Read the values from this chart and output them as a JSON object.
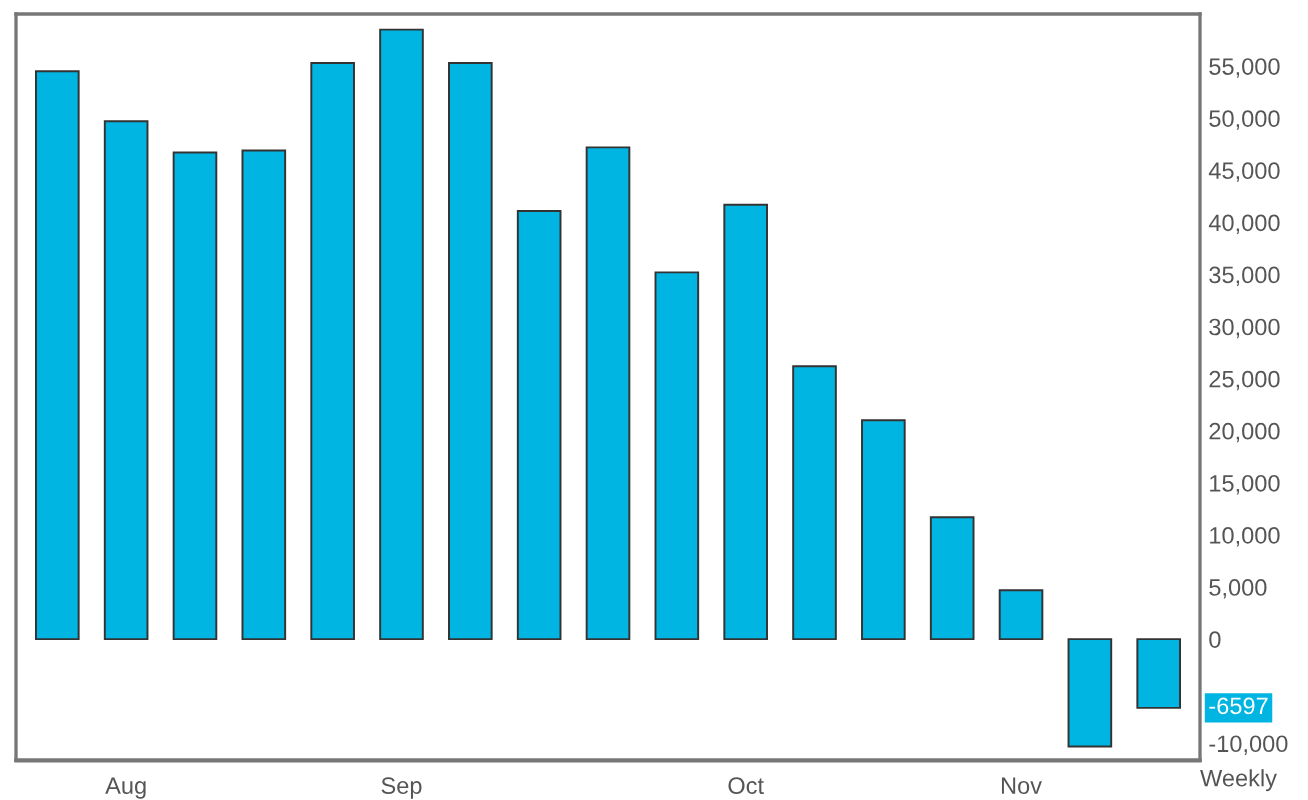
{
  "chart_data": {
    "type": "bar",
    "categories": [
      null,
      "Aug",
      null,
      null,
      null,
      "Sep",
      null,
      null,
      null,
      null,
      "Oct",
      null,
      null,
      null,
      "Nov",
      null,
      null
    ],
    "values": [
      54500,
      49700,
      46700,
      46900,
      55300,
      58500,
      55300,
      41100,
      47200,
      35200,
      41700,
      26200,
      21000,
      11700,
      4700,
      -10300,
      -6597
    ],
    "annotations": [
      {
        "text": "-6597",
        "y": -6597
      }
    ],
    "color": "#00b5e2",
    "xlabel": "Weekly",
    "ylim": [
      -11600,
      60000
    ],
    "yticks": [
      {
        "value": -10000,
        "label": "-10,000"
      },
      {
        "value": 0,
        "label": "0"
      },
      {
        "value": 5000,
        "label": "5,000"
      },
      {
        "value": 10000,
        "label": "10,000"
      },
      {
        "value": 15000,
        "label": "15,000"
      },
      {
        "value": 20000,
        "label": "20,000"
      },
      {
        "value": 25000,
        "label": "25,000"
      },
      {
        "value": 30000,
        "label": "30,000"
      },
      {
        "value": 35000,
        "label": "35,000"
      },
      {
        "value": 40000,
        "label": "40,000"
      },
      {
        "value": 45000,
        "label": "45,000"
      },
      {
        "value": 50000,
        "label": "50,000"
      },
      {
        "value": 55000,
        "label": "55,000"
      }
    ],
    "grid": false,
    "legend": false
  }
}
